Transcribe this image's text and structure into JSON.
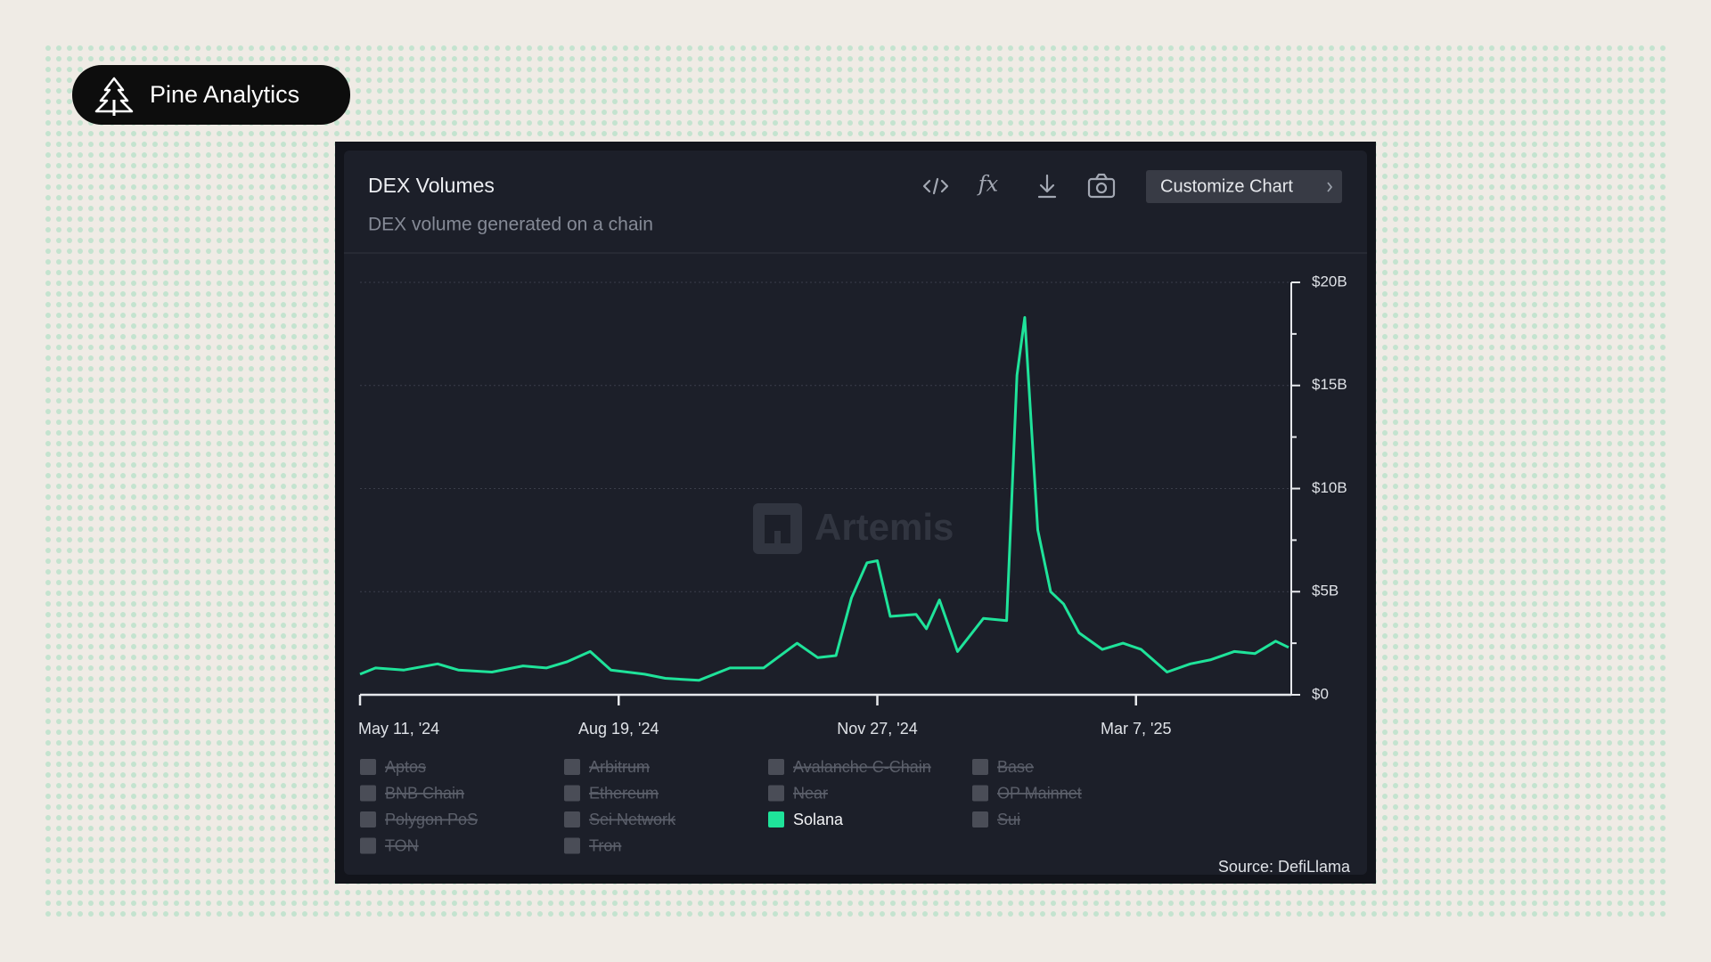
{
  "brand": "Pine Analytics",
  "button": "Customize Chart",
  "watermark": "Artemis",
  "source": "Source: DefiLlama",
  "chart_data": {
    "type": "line",
    "title": "DEX Volumes",
    "subtitle": "DEX volume generated on a chain",
    "x": [
      "2024-05-11",
      "2024-05-17",
      "2024-05-28",
      "2024-06-10",
      "2024-06-18",
      "2024-07-01",
      "2024-07-13",
      "2024-07-22",
      "2024-07-30",
      "2024-08-08",
      "2024-08-16",
      "2024-08-29",
      "2024-09-06",
      "2024-09-19",
      "2024-10-01",
      "2024-10-14",
      "2024-10-27",
      "2024-11-04",
      "2024-11-11",
      "2024-11-17",
      "2024-11-23",
      "2024-11-27",
      "2024-12-02",
      "2024-12-12",
      "2024-12-16",
      "2024-12-21",
      "2024-12-28",
      "2025-01-07",
      "2025-01-16",
      "2025-01-20",
      "2025-01-23",
      "2025-01-28",
      "2025-02-02",
      "2025-02-07",
      "2025-02-13",
      "2025-02-22",
      "2025-03-02",
      "2025-03-09",
      "2025-03-19",
      "2025-03-28",
      "2025-04-05",
      "2025-04-14",
      "2025-04-22",
      "2025-04-30",
      "2025-05-05"
    ],
    "series": [
      {
        "color": "#1fe39a",
        "values": [
          1000000000.0,
          1300000000.0,
          1200000000.0,
          1500000000.0,
          1200000000.0,
          1100000000.0,
          1400000000.0,
          1300000000.0,
          1600000000.0,
          2100000000.0,
          1200000000.0,
          1000000000.0,
          800000000.0,
          700000000.0,
          1300000000.0,
          1300000000.0,
          2500000000.0,
          1800000000.0,
          1900000000.0,
          4700000000.0,
          6400000000.0,
          6500000000.0,
          3800000000.0,
          3900000000.0,
          3200000000.0,
          4600000000.0,
          2100000000.0,
          3700000000.0,
          3600000000.0,
          15500000000.0,
          18300000000.0,
          8000000000.0,
          5000000000.0,
          4400000000.0,
          3000000000.0,
          2200000000.0,
          2500000000.0,
          2200000000.0,
          1100000000.0,
          1500000000.0,
          1700000000.0,
          2100000000.0,
          2000000000.0,
          2600000000.0,
          2300000000.0
        ]
      }
    ],
    "xlim": [
      "2024-05-11",
      "2025-05-05"
    ],
    "xticks": [
      {
        "value": "2024-05-11",
        "label": "May 11, '24"
      },
      {
        "value": "2024-08-19",
        "label": "Aug 19, '24"
      },
      {
        "value": "2024-11-27",
        "label": "Nov 27, '24"
      },
      {
        "value": "2025-03-07",
        "label": "Mar 7, '25"
      }
    ],
    "ylim": [
      0,
      20000000000
    ],
    "yticks": [
      {
        "value": 0,
        "label": "$0"
      },
      {
        "value": 5000000000,
        "label": "$5B"
      },
      {
        "value": 10000000000,
        "label": "$10B"
      },
      {
        "value": 15000000000,
        "label": "$15B"
      },
      {
        "value": 20000000000,
        "label": "$20B"
      }
    ],
    "yminorticks": [
      2500000000,
      7500000000,
      12500000000,
      17500000000
    ],
    "grid": true,
    "legend": [
      {
        "name": "Aptos",
        "active": false
      },
      {
        "name": "Arbitrum",
        "active": false
      },
      {
        "name": "Avalanche C-Chain",
        "active": false
      },
      {
        "name": "Base",
        "active": false
      },
      {
        "name": "BNB Chain",
        "active": false
      },
      {
        "name": "Ethereum",
        "active": false
      },
      {
        "name": "Near",
        "active": false
      },
      {
        "name": "OP Mainnet",
        "active": false
      },
      {
        "name": "Polygon PoS",
        "active": false
      },
      {
        "name": "Sei Network",
        "active": false
      },
      {
        "name": "Solana",
        "active": true
      },
      {
        "name": "Sui",
        "active": false
      },
      {
        "name": "TON",
        "active": false
      },
      {
        "name": "Tron",
        "active": false
      }
    ]
  }
}
